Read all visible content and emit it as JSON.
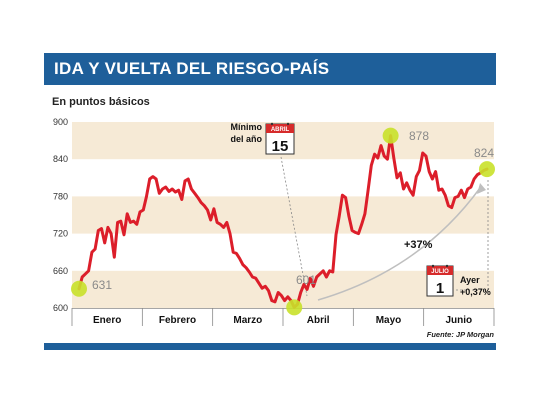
{
  "header": {
    "title": "IDA Y VUELTA DEL RIESGO-PAÍS",
    "subtitle": "En puntos básicos"
  },
  "source": "Fuente: JP Morgan",
  "colors": {
    "header_blue": "#1e5f9a",
    "band": "#f6ead6",
    "line": "#dc1e2a",
    "marker": "#c9e12a",
    "calendar_red": "#d62b2b"
  },
  "annotations": {
    "start_value": "631",
    "min_value": "601",
    "max_value": "878",
    "end_value": "824",
    "min_note_line1": "Mínimo",
    "min_note_line2": "del año",
    "min_cal_month": "ABRIL",
    "min_cal_day": "15",
    "change_pct": "+37%",
    "yesterday_cal_month": "JULIO",
    "yesterday_cal_day": "1",
    "yesterday_line1": "Ayer",
    "yesterday_line2": "+0,37%"
  },
  "chart_data": {
    "type": "line",
    "title": "IDA Y VUELTA DEL RIESGO-PAÍS",
    "subtitle": "En puntos básicos",
    "ylim": [
      600,
      900
    ],
    "y_ticks": [
      600,
      660,
      720,
      780,
      840,
      900
    ],
    "months": [
      "Enero",
      "Febrero",
      "Marzo",
      "Abril",
      "Mayo",
      "Junio"
    ],
    "x_unit": "trading day index (approx., Jan 2 – Jul 1)",
    "x_range": [
      0,
      127
    ],
    "series": [
      {
        "values": [
          [
            0,
            631
          ],
          [
            1,
            650
          ],
          [
            2,
            655
          ],
          [
            3,
            660
          ],
          [
            4,
            690
          ],
          [
            5,
            695
          ],
          [
            6,
            725
          ],
          [
            7,
            728
          ],
          [
            8,
            705
          ],
          [
            9,
            730
          ],
          [
            10,
            720
          ],
          [
            11,
            682
          ],
          [
            12,
            738
          ],
          [
            13,
            740
          ],
          [
            14,
            718
          ],
          [
            15,
            752
          ],
          [
            16,
            738
          ],
          [
            17,
            740
          ],
          [
            18,
            735
          ],
          [
            19,
            755
          ],
          [
            20,
            758
          ],
          [
            21,
            780
          ],
          [
            22,
            808
          ],
          [
            23,
            812
          ],
          [
            24,
            808
          ],
          [
            25,
            785
          ],
          [
            26,
            792
          ],
          [
            27,
            795
          ],
          [
            28,
            788
          ],
          [
            29,
            792
          ],
          [
            30,
            787
          ],
          [
            31,
            790
          ],
          [
            32,
            775
          ],
          [
            33,
            805
          ],
          [
            34,
            808
          ],
          [
            35,
            792
          ],
          [
            36,
            785
          ],
          [
            37,
            778
          ],
          [
            38,
            770
          ],
          [
            39,
            765
          ],
          [
            40,
            758
          ],
          [
            41,
            742
          ],
          [
            42,
            760
          ],
          [
            43,
            738
          ],
          [
            44,
            735
          ],
          [
            45,
            730
          ],
          [
            46,
            738
          ],
          [
            47,
            720
          ],
          [
            48,
            690
          ],
          [
            49,
            688
          ],
          [
            50,
            680
          ],
          [
            51,
            670
          ],
          [
            52,
            665
          ],
          [
            53,
            658
          ],
          [
            54,
            650
          ],
          [
            55,
            648
          ],
          [
            56,
            640
          ],
          [
            57,
            632
          ],
          [
            58,
            635
          ],
          [
            59,
            628
          ],
          [
            60,
            612
          ],
          [
            61,
            610
          ],
          [
            62,
            625
          ],
          [
            63,
            620
          ],
          [
            64,
            612
          ],
          [
            65,
            618
          ],
          [
            66,
            612
          ],
          [
            67,
            601
          ],
          [
            68,
            606
          ],
          [
            69,
            625
          ],
          [
            70,
            638
          ],
          [
            71,
            630
          ],
          [
            72,
            648
          ],
          [
            73,
            635
          ],
          [
            74,
            650
          ],
          [
            75,
            655
          ],
          [
            76,
            660
          ],
          [
            77,
            650
          ],
          [
            78,
            660
          ],
          [
            79,
            658
          ],
          [
            80,
            718
          ],
          [
            81,
            748
          ],
          [
            82,
            782
          ],
          [
            83,
            778
          ],
          [
            84,
            748
          ],
          [
            85,
            725
          ],
          [
            86,
            722
          ],
          [
            87,
            720
          ],
          [
            88,
            735
          ],
          [
            89,
            752
          ],
          [
            90,
            790
          ],
          [
            91,
            830
          ],
          [
            92,
            848
          ],
          [
            93,
            842
          ],
          [
            94,
            862
          ],
          [
            95,
            845
          ],
          [
            96,
            840
          ],
          [
            97,
            878
          ],
          [
            98,
            842
          ],
          [
            99,
            810
          ],
          [
            100,
            818
          ],
          [
            101,
            792
          ],
          [
            102,
            802
          ],
          [
            103,
            790
          ],
          [
            104,
            782
          ],
          [
            105,
            812
          ],
          [
            106,
            822
          ],
          [
            107,
            850
          ],
          [
            108,
            845
          ],
          [
            109,
            820
          ],
          [
            110,
            808
          ],
          [
            111,
            820
          ],
          [
            112,
            790
          ],
          [
            113,
            792
          ],
          [
            114,
            782
          ],
          [
            115,
            765
          ],
          [
            116,
            762
          ],
          [
            117,
            778
          ],
          [
            118,
            780
          ],
          [
            119,
            790
          ],
          [
            120,
            778
          ],
          [
            121,
            792
          ],
          [
            122,
            795
          ],
          [
            123,
            808
          ],
          [
            124,
            815
          ],
          [
            125,
            818
          ],
          [
            126,
            822
          ],
          [
            127,
            824
          ]
        ]
      }
    ],
    "highlighted_points": [
      {
        "x": 0,
        "y": 631
      },
      {
        "x": 67,
        "y": 601
      },
      {
        "x": 97,
        "y": 878
      },
      {
        "x": 127,
        "y": 824
      }
    ],
    "background_bands": true
  }
}
